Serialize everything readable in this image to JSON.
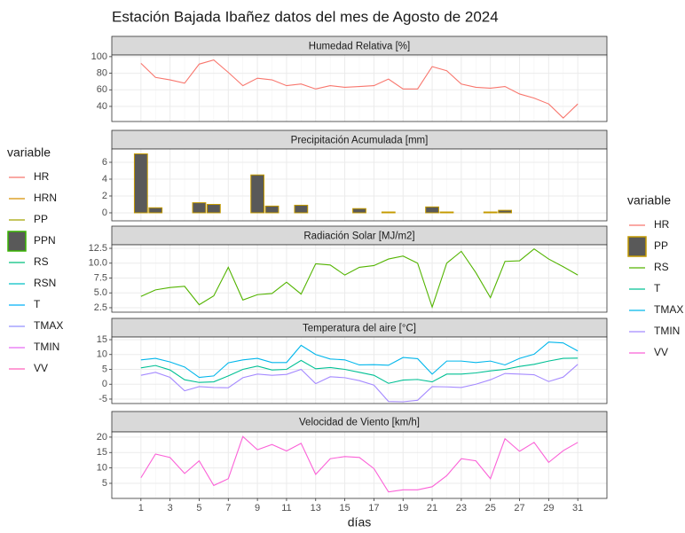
{
  "title": "Estación Bajada Ibañez datos del mes de Agosto de 2024",
  "legends": [
    {
      "title": "variable",
      "entries": [
        {
          "name": "HR",
          "color": "#F8766D",
          "key": "line"
        },
        {
          "name": "HRN",
          "color": "#D89000",
          "key": "line"
        },
        {
          "name": "PP",
          "color": "#A3A500",
          "key": "line"
        },
        {
          "name": "PPN",
          "color": "#39B600",
          "key": "box",
          "fill": "#595959"
        },
        {
          "name": "RS",
          "color": "#00BF7D",
          "key": "line"
        },
        {
          "name": "RSN",
          "color": "#00BFC4",
          "key": "line"
        },
        {
          "name": "T",
          "color": "#00B0F6",
          "key": "line"
        },
        {
          "name": "TMAX",
          "color": "#9590FF",
          "key": "line"
        },
        {
          "name": "TMIN",
          "color": "#E76BF3",
          "key": "line"
        },
        {
          "name": "VV",
          "color": "#FF62BC",
          "key": "line"
        }
      ]
    },
    {
      "title": "variable",
      "entries": [
        {
          "name": "HR",
          "color": "#F8766D",
          "key": "line"
        },
        {
          "name": "PP",
          "color": "#C49A00",
          "key": "box",
          "fill": "#595959"
        },
        {
          "name": "RS",
          "color": "#53B400",
          "key": "line"
        },
        {
          "name": "T",
          "color": "#00C094",
          "key": "line"
        },
        {
          "name": "TMAX",
          "color": "#00B6EB",
          "key": "line"
        },
        {
          "name": "TMIN",
          "color": "#A58AFF",
          "key": "line"
        },
        {
          "name": "VV",
          "color": "#FB61D7",
          "key": "line"
        }
      ]
    }
  ],
  "chart_data": [
    {
      "type": "line",
      "title": "Humedad Relativa [%]",
      "x": [
        1,
        2,
        3,
        4,
        5,
        6,
        7,
        8,
        9,
        10,
        11,
        12,
        13,
        14,
        15,
        16,
        17,
        18,
        19,
        20,
        21,
        22,
        23,
        24,
        25,
        26,
        27,
        28,
        29,
        30,
        31
      ],
      "series": [
        {
          "name": "HR",
          "color": "#F8766D",
          "values": [
            92,
            75,
            72,
            68,
            91,
            96,
            81,
            65,
            74,
            72,
            65,
            67,
            61,
            65,
            63,
            64,
            65,
            73,
            61,
            61,
            88,
            83,
            67,
            63,
            62,
            64,
            55,
            50,
            43,
            26,
            43
          ]
        }
      ],
      "xlim": [
        -1,
        33
      ],
      "ylim": [
        21.8,
        102
      ],
      "yticks": [
        40,
        60,
        80,
        100
      ],
      "grid": true
    },
    {
      "type": "bar",
      "title": "Precipitación Acumulada [mm]",
      "x": [
        1,
        2,
        3,
        4,
        5,
        6,
        7,
        8,
        9,
        10,
        11,
        12,
        13,
        14,
        15,
        16,
        17,
        18,
        19,
        20,
        21,
        22,
        23,
        24,
        25,
        26,
        27,
        28,
        29,
        30,
        31
      ],
      "series": [
        {
          "name": "PP",
          "color": "#C49A00",
          "fill": "#595959",
          "values": [
            7.0,
            0.6,
            0,
            0,
            1.2,
            1.0,
            0,
            0,
            4.5,
            0.8,
            0,
            0.9,
            0,
            0,
            0,
            0.5,
            0,
            0.1,
            0,
            0,
            0.7,
            0.1,
            0,
            0,
            0.1,
            0.3,
            0,
            0,
            0,
            0,
            0
          ]
        }
      ],
      "xlim": [
        -1,
        33
      ],
      "ylim": [
        -0.95,
        7.58
      ],
      "yticks": [
        0,
        2,
        4,
        6
      ],
      "grid": true
    },
    {
      "type": "line",
      "title": "Radiación Solar [MJ/m2]",
      "x": [
        1,
        2,
        3,
        4,
        5,
        6,
        7,
        8,
        9,
        10,
        11,
        12,
        13,
        14,
        15,
        16,
        17,
        18,
        19,
        20,
        21,
        22,
        23,
        24,
        25,
        26,
        27,
        28,
        29,
        30,
        31
      ],
      "series": [
        {
          "name": "RS",
          "color": "#53B400",
          "values": [
            4.4,
            5.5,
            5.9,
            6.1,
            3.0,
            4.5,
            9.3,
            3.8,
            4.7,
            4.9,
            6.8,
            4.8,
            9.9,
            9.7,
            8.0,
            9.3,
            9.6,
            10.7,
            11.2,
            10.0,
            2.6,
            10.0,
            12.0,
            8.4,
            4.2,
            10.3,
            10.4,
            12.4,
            10.7,
            9.4,
            8.0
          ]
        }
      ],
      "xlim": [
        -1,
        33
      ],
      "ylim": [
        1.75,
        13.1
      ],
      "yticks": [
        {
          "value": 2.5,
          "label": "2.5"
        },
        {
          "value": 5,
          "label": "5.0"
        },
        {
          "value": 7.5,
          "label": "7.5"
        },
        {
          "value": 10,
          "label": "10.0"
        },
        {
          "value": 12.5,
          "label": "12.5"
        }
      ],
      "grid": true
    },
    {
      "type": "line",
      "title": "Temperatura del aire [°C]",
      "x": [
        1,
        2,
        3,
        4,
        5,
        6,
        7,
        8,
        9,
        10,
        11,
        12,
        13,
        14,
        15,
        16,
        17,
        18,
        19,
        20,
        21,
        22,
        23,
        24,
        25,
        26,
        27,
        28,
        29,
        30,
        31
      ],
      "series": [
        {
          "name": "T",
          "color": "#00C094",
          "values": [
            5.5,
            6.3,
            4.8,
            1.5,
            0.6,
            0.8,
            2.8,
            5.0,
            6.1,
            4.8,
            5.0,
            8.0,
            5.2,
            5.6,
            5.0,
            4.0,
            3.0,
            0.3,
            1.4,
            1.6,
            0.8,
            3.4,
            3.4,
            3.8,
            4.5,
            5.0,
            6.0,
            6.7,
            7.8,
            8.7,
            8.8
          ]
        },
        {
          "name": "TMAX",
          "color": "#00B6EB",
          "values": [
            8.2,
            8.7,
            7.5,
            5.8,
            2.3,
            2.8,
            7.2,
            8.2,
            8.7,
            7.3,
            7.3,
            13.1,
            10.0,
            8.5,
            8.2,
            6.5,
            6.6,
            6.4,
            9.0,
            8.6,
            3.4,
            7.8,
            7.8,
            7.3,
            7.8,
            6.5,
            8.7,
            10.1,
            14.2,
            13.9,
            11.2
          ]
        },
        {
          "name": "TMIN",
          "color": "#A58AFF",
          "values": [
            3.0,
            4.0,
            2.3,
            -2.2,
            -0.8,
            -1.1,
            -1.2,
            2.2,
            3.4,
            3.0,
            3.3,
            5.0,
            0.2,
            2.5,
            2.2,
            1.2,
            -0.3,
            -5.8,
            -5.9,
            -5.4,
            -0.8,
            -0.9,
            -1.1,
            0.0,
            1.5,
            3.6,
            3.4,
            3.2,
            0.9,
            2.4,
            6.7
          ]
        }
      ],
      "xlim": [
        -1,
        33
      ],
      "ylim": [
        -6.5,
        15.9
      ],
      "yticks": [
        -5,
        0,
        5,
        10,
        15
      ],
      "grid": true
    },
    {
      "type": "line",
      "title": "Velocidad de Viento [km/h]",
      "x": [
        1,
        2,
        3,
        4,
        5,
        6,
        7,
        8,
        9,
        10,
        11,
        12,
        13,
        14,
        15,
        16,
        17,
        18,
        19,
        20,
        21,
        22,
        23,
        24,
        25,
        26,
        27,
        28,
        29,
        30,
        31
      ],
      "series": [
        {
          "name": "VV",
          "color": "#FB61D7",
          "values": [
            6.8,
            14.5,
            13.4,
            8.2,
            12.3,
            4.3,
            6.5,
            20.2,
            15.9,
            17.6,
            15.5,
            18.0,
            7.9,
            13.0,
            13.7,
            13.4,
            9.8,
            2.2,
            2.9,
            2.9,
            3.9,
            7.5,
            13.0,
            12.3,
            6.5,
            19.5,
            15.4,
            18.3,
            11.8,
            15.6,
            18.3
          ]
        }
      ],
      "xlim": [
        -1,
        33
      ],
      "ylim": [
        0.1,
        21.7
      ],
      "yticks": [
        5,
        10,
        15,
        20
      ],
      "xticks": [
        1,
        3,
        5,
        7,
        9,
        11,
        13,
        15,
        17,
        19,
        21,
        23,
        25,
        27,
        29,
        31
      ],
      "xlabel": "días",
      "grid": true
    }
  ]
}
